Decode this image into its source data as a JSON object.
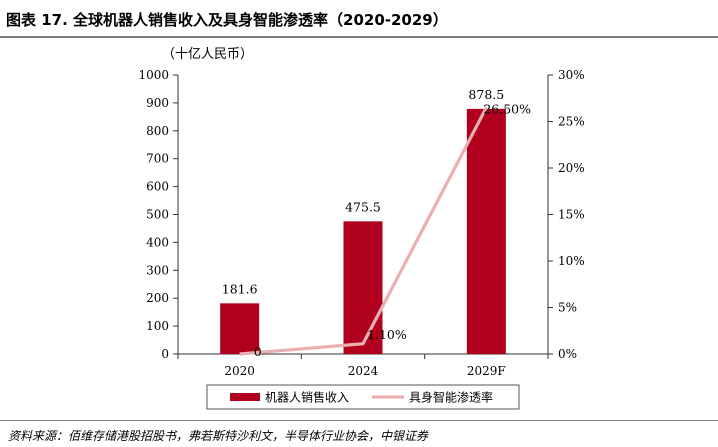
{
  "figure": {
    "title": "图表 17. 全球机器人销售收入及具身智能渗透率（2020-2029）",
    "source": "资料来源：佰维存储港股招股书，弗若斯特沙利文，半导体行业协会，中银证券"
  },
  "colors": {
    "bar": "#b0001e",
    "line": "#eab0b0",
    "axis": "#333333"
  },
  "chart_data": {
    "type": "bar",
    "unit_label": "（十亿人民币）",
    "categories": [
      "2020",
      "2024",
      "2029F"
    ],
    "series": [
      {
        "name": "机器人销售收入",
        "type": "bar",
        "axis": "left",
        "values": [
          181.6,
          475.5,
          878.5
        ],
        "labels": [
          "181.6",
          "475.5",
          "878.5"
        ]
      },
      {
        "name": "具身智能渗透率",
        "type": "line",
        "axis": "right",
        "values": [
          0,
          1.1,
          26.5
        ],
        "labels": [
          "0",
          "1.10%",
          "26.50%"
        ]
      }
    ],
    "y_left": {
      "min": 0,
      "max": 1000,
      "ticks": [
        0,
        100,
        200,
        300,
        400,
        500,
        600,
        700,
        800,
        900,
        1000
      ],
      "tick_labels": [
        "0",
        "100",
        "200",
        "300",
        "400",
        "500",
        "600",
        "700",
        "800",
        "900",
        "1000"
      ]
    },
    "y_right": {
      "min": 0,
      "max": 30,
      "ticks": [
        0,
        5,
        10,
        15,
        20,
        25,
        30
      ],
      "tick_labels": [
        "0%",
        "5%",
        "10%",
        "15%",
        "20%",
        "25%",
        "30%"
      ]
    },
    "grid": false,
    "legend_position": "bottom"
  }
}
